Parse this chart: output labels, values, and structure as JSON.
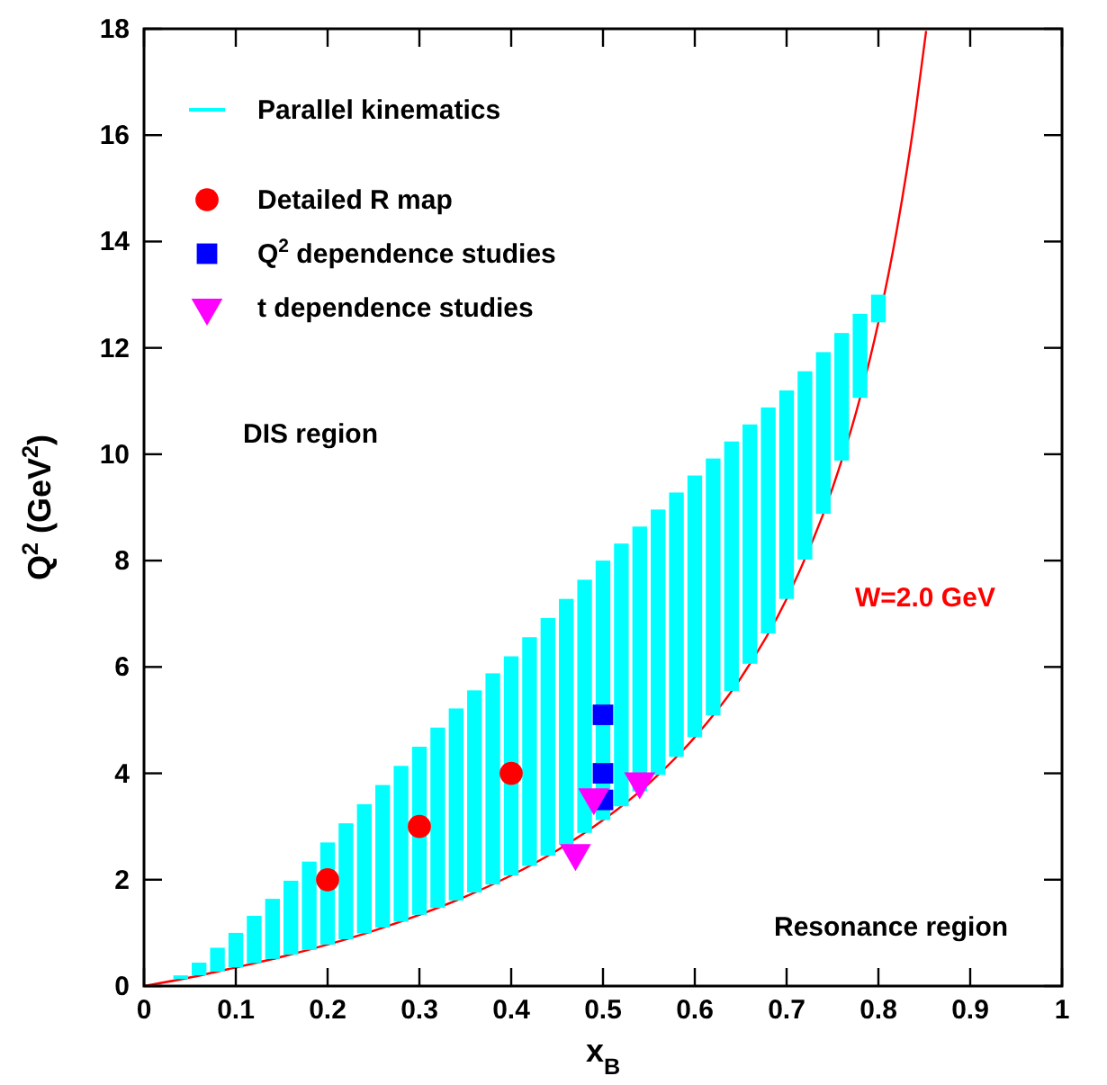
{
  "chart_data": {
    "type": "scatter",
    "xlabel": "x$_{B}$",
    "ylabel": "Q$^{2}$ (GeV$^{2}$)",
    "xlim": [
      0,
      1
    ],
    "xticks": [
      0,
      0.1,
      0.2,
      0.3,
      0.4,
      0.5,
      0.6,
      0.7,
      0.8,
      0.9,
      1
    ],
    "ylim": [
      0,
      18
    ],
    "yticks": [
      0,
      2,
      4,
      6,
      8,
      10,
      12,
      14,
      16,
      18
    ],
    "grid": false,
    "legend": "top left",
    "annotations": [
      "DIS region",
      "Resonance region"
    ],
    "series": [
      {
        "name": "W=2.0 GeV",
        "type": "line",
        "color": "#ff0000",
        "x": [
          0,
          0.05,
          0.1,
          0.15,
          0.2,
          0.25,
          0.3,
          0.35,
          0.4,
          0.45,
          0.5,
          0.55,
          0.6,
          0.65,
          0.7,
          0.75,
          0.78,
          0.8,
          0.82,
          0.84,
          0.852
        ],
        "values": [
          0,
          0.16,
          0.35,
          0.55,
          0.78,
          1.04,
          1.34,
          1.68,
          2.08,
          2.55,
          3.12,
          3.81,
          4.68,
          5.79,
          7.28,
          9.36,
          11.06,
          12.48,
          14.21,
          16.38,
          17.96
        ]
      },
      {
        "name": "Parallel kinematics",
        "type": "bar",
        "color": "#00ffff",
        "x": [
          0.04,
          0.06,
          0.08,
          0.1,
          0.12,
          0.14,
          0.16,
          0.18,
          0.2,
          0.22,
          0.24,
          0.26,
          0.28,
          0.3,
          0.32,
          0.34,
          0.36,
          0.38,
          0.4,
          0.42,
          0.44,
          0.46,
          0.48,
          0.5,
          0.52,
          0.54,
          0.56,
          0.58,
          0.6,
          0.62,
          0.64,
          0.66,
          0.68,
          0.7,
          0.72,
          0.74,
          0.76,
          0.78,
          0.8
        ],
        "values": [
          0.07,
          0.24,
          0.45,
          0.65,
          0.89,
          1.13,
          1.39,
          1.66,
          1.92,
          2.18,
          2.43,
          2.68,
          2.93,
          3.16,
          3.39,
          3.61,
          3.8,
          3.97,
          4.12,
          4.3,
          4.47,
          4.62,
          4.76,
          4.88,
          4.94,
          4.98,
          4.99,
          4.97,
          4.92,
          4.83,
          4.69,
          4.5,
          4.25,
          3.92,
          3.54,
          3.04,
          2.4,
          1.58,
          0.52
        ],
        "base": [
          0.13,
          0.2,
          0.27,
          0.35,
          0.43,
          0.51,
          0.59,
          0.68,
          0.78,
          0.88,
          0.99,
          1.1,
          1.21,
          1.34,
          1.47,
          1.61,
          1.76,
          1.91,
          2.08,
          2.26,
          2.45,
          2.66,
          2.88,
          3.12,
          3.38,
          3.66,
          3.97,
          4.31,
          4.68,
          5.09,
          5.55,
          6.06,
          6.63,
          7.28,
          8.02,
          8.88,
          9.88,
          11.06,
          12.48
        ]
      },
      {
        "name": "Detailed R map",
        "color": "#ff0000",
        "marker": "circle",
        "x": [
          0.2,
          0.3,
          0.4
        ],
        "values": [
          2,
          3,
          4
        ]
      },
      {
        "name": "Q$^{2}$ dependence studies",
        "color": "#0000ff",
        "marker": "square",
        "x": [
          0.5,
          0.5,
          0.5
        ],
        "values": [
          3.5,
          4,
          5.1
        ]
      },
      {
        "name": "t dependence studies",
        "color": "#ff00ff",
        "marker": "triangle-down",
        "x": [
          0.47,
          0.49,
          0.54
        ],
        "values": [
          2.5,
          3.55,
          3.85
        ]
      }
    ]
  }
}
